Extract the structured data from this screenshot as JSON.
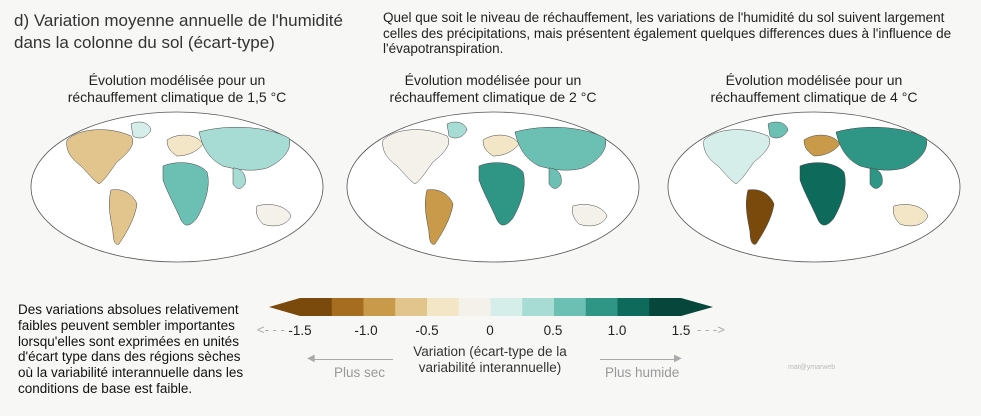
{
  "title": "d) Variation moyenne annuelle de l'humidité dans la colonne du sol (écart-type)",
  "intro": "Quel que soit le niveau de réchauffement, les variations de l'humidité du sol suivent largement celles des précipitations, mais présentent également quelques differences dues à l'influence de l'évapotranspiration.",
  "maps": [
    {
      "line1": "Évolution modélisée pour un",
      "line2": "réchauffement climatique de 1,5 °C",
      "warming": 1.5
    },
    {
      "line1": "Évolution modélisée pour un",
      "line2": "réchauffement climatique de 2 °C",
      "warming": 2
    },
    {
      "line1": "Évolution modélisée pour un",
      "line2": "réchauffement climatique de 4 °C",
      "warming": 4
    }
  ],
  "note": "Des variations absolues relativement faibles peuvent sembler importantes lorsqu'elles sont exprimées en unités d'écart type dans des régions sèches où la variabilité interannuelle dans les conditions de base est faible.",
  "legend": {
    "ticks": [
      "-1.5",
      "-1.0",
      "-0.5",
      "0",
      "0.5",
      "1.0",
      "1.5"
    ],
    "title_line1": "Variation (écart-type de la",
    "title_line2": "variabilité interannuelle)",
    "drier": "Plus sec",
    "wetter": "Plus humide",
    "colors": [
      "#7a4a0d",
      "#a66c1f",
      "#c99a4a",
      "#e2c58d",
      "#f3e6c7",
      "#f3f1ea",
      "#d6eeea",
      "#a6dcd4",
      "#6cc0b3",
      "#2f9585",
      "#0e6b5c",
      "#06463b"
    ]
  },
  "watermark": "mat@ymarweb"
}
